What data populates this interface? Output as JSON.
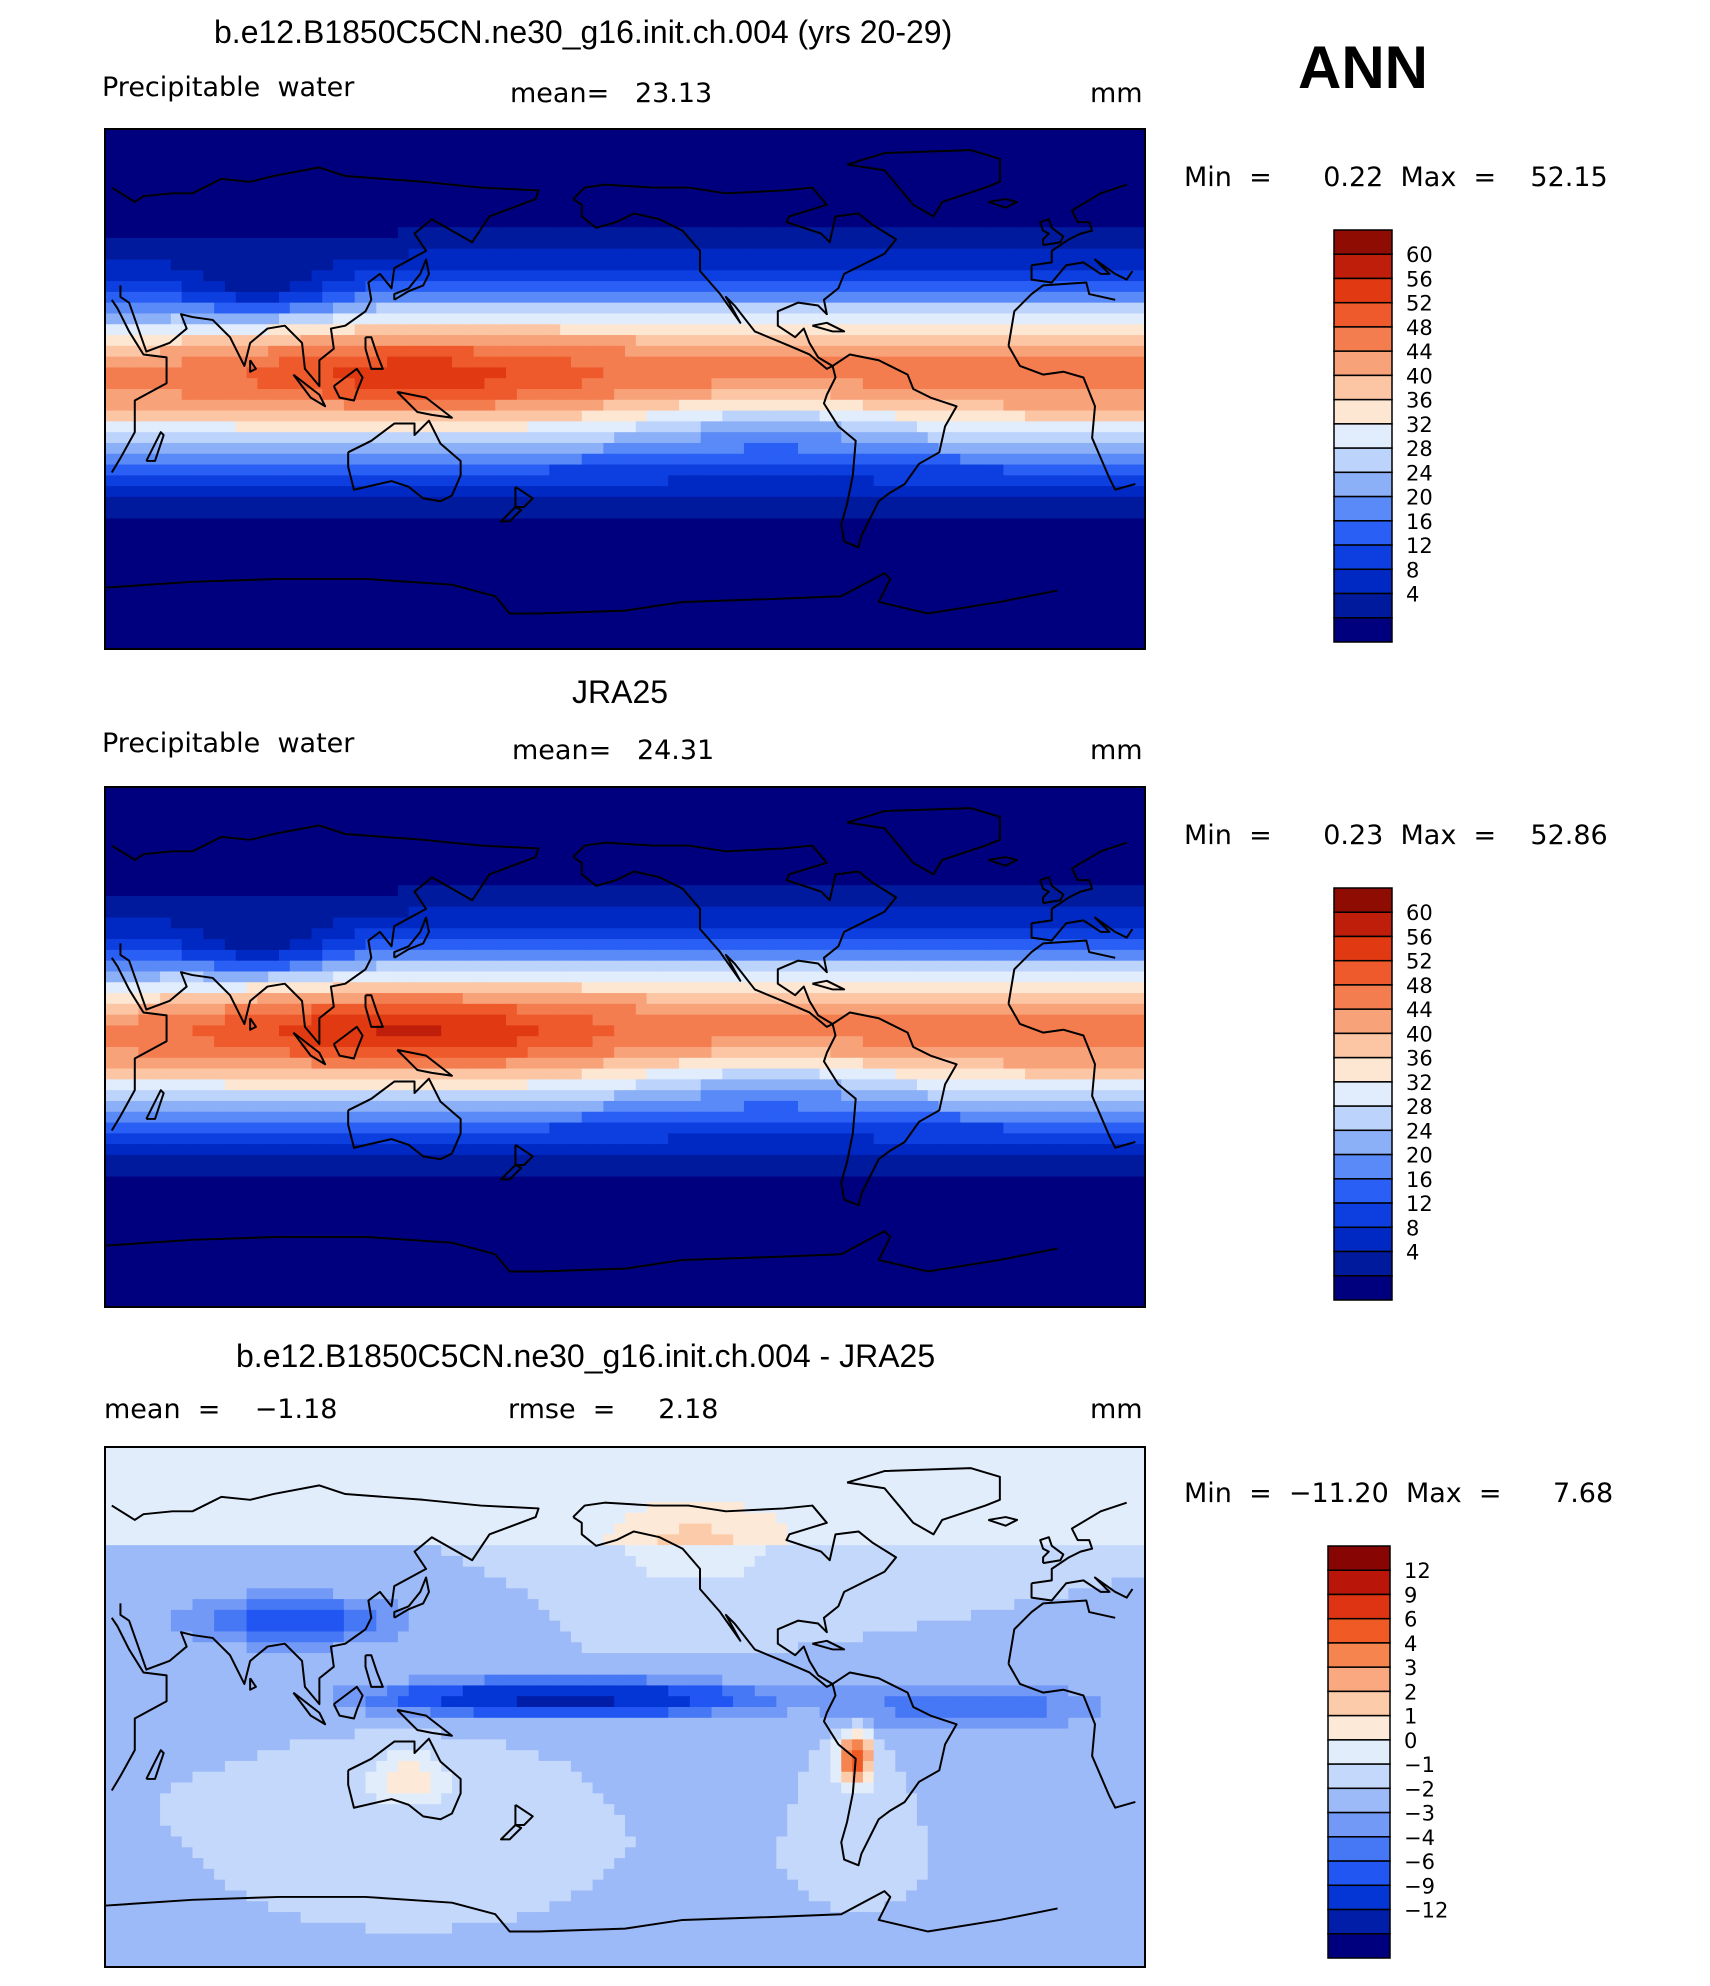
{
  "season": "ANN",
  "colors": {
    "abs_scale": [
      "#00007f",
      "#001a9e",
      "#0028c2",
      "#0d3fe0",
      "#2a5ff5",
      "#5a8af7",
      "#8cb0f8",
      "#bcd3fb",
      "#e1ecfc",
      "#fde6d2",
      "#fcc6a5",
      "#f8a27a",
      "#f47d50",
      "#ee5a2b",
      "#e13a12",
      "#bf1f0a",
      "#8f0c03"
    ],
    "diff_scale": [
      "#00007f",
      "#001ea7",
      "#0436d6",
      "#2256f2",
      "#4678f6",
      "#7399f7",
      "#9dbaf8",
      "#c4d8fb",
      "#e2edfc",
      "#fde9d7",
      "#fcccaa",
      "#f9a87f",
      "#f5844f",
      "#ef5a25",
      "#de3413",
      "#b91508",
      "#870503"
    ]
  },
  "panels": [
    {
      "title": "b.e12.B1850C5CN.ne30_g16.init.ch.004 (yrs 20-29)",
      "left_label": "Precipitable  water",
      "center_label": "mean=   23.13",
      "units": "mm",
      "minmax": "Min  =      0.22  Max  =    52.15",
      "levels": [
        "60",
        "56",
        "52",
        "48",
        "44",
        "40",
        "36",
        "32",
        "28",
        "24",
        "20",
        "16",
        "12",
        "8",
        "4"
      ]
    },
    {
      "title": "JRA25",
      "left_label": "Precipitable  water",
      "center_label": "mean=   24.31",
      "units": "mm",
      "minmax": "Min  =      0.23  Max  =    52.86",
      "levels": [
        "60",
        "56",
        "52",
        "48",
        "44",
        "40",
        "36",
        "32",
        "28",
        "24",
        "20",
        "16",
        "12",
        "8",
        "4"
      ]
    },
    {
      "title": "b.e12.B1850C5CN.ne30_g16.init.ch.004 - JRA25",
      "left_label": "mean  =    −1.18",
      "center_label": "rmse  =     2.18",
      "units": "mm",
      "minmax": "Min  =  −11.20  Max  =      7.68",
      "levels": [
        "12",
        "9",
        "6",
        "4",
        "3",
        "2",
        "1",
        "0",
        "−1",
        "−2",
        "−3",
        "−4",
        "−6",
        "−9",
        "−12"
      ]
    }
  ]
}
